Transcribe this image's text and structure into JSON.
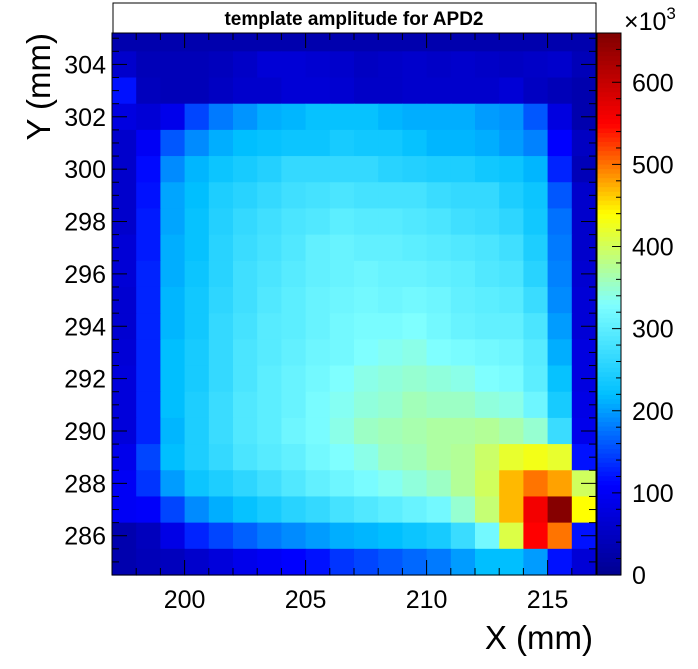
{
  "chart_data": {
    "type": "heatmap",
    "title": "template amplitude for APD2",
    "xlabel": "X (mm)",
    "ylabel": "Y (mm)",
    "xlim": [
      197.0,
      217.0
    ],
    "ylim": [
      284.5,
      305.2
    ],
    "x_ticks": [
      200,
      205,
      210,
      215
    ],
    "y_ticks": [
      286,
      288,
      290,
      292,
      294,
      296,
      298,
      300,
      302,
      304
    ],
    "x_centers": [
      197.5,
      198.5,
      199.5,
      200.5,
      201.5,
      202.5,
      203.5,
      204.5,
      205.5,
      206.5,
      207.5,
      208.5,
      209.5,
      210.5,
      211.5,
      212.5,
      213.5,
      214.5,
      215.5,
      216.5
    ],
    "y_centers": [
      305.0,
      304.0,
      303.0,
      302.0,
      301.0,
      300.0,
      299.0,
      298.0,
      297.0,
      296.0,
      295.0,
      294.0,
      293.0,
      292.0,
      291.0,
      290.0,
      289.0,
      288.0,
      287.0,
      286.0,
      285.0
    ],
    "z_rows_top_to_bottom": [
      [
        30,
        30,
        30,
        30,
        30,
        30,
        30,
        30,
        30,
        30,
        30,
        30,
        30,
        30,
        30,
        30,
        30,
        30,
        30,
        30
      ],
      [
        60,
        40,
        40,
        40,
        45,
        55,
        70,
        70,
        65,
        60,
        50,
        55,
        60,
        55,
        60,
        55,
        50,
        55,
        60,
        40
      ],
      [
        120,
        45,
        40,
        40,
        50,
        60,
        60,
        70,
        70,
        65,
        55,
        55,
        60,
        60,
        60,
        60,
        70,
        50,
        40,
        30
      ],
      [
        80,
        70,
        90,
        150,
        180,
        195,
        210,
        215,
        225,
        225,
        225,
        215,
        210,
        210,
        210,
        200,
        195,
        160,
        80,
        30
      ],
      [
        60,
        100,
        160,
        190,
        210,
        220,
        225,
        230,
        230,
        240,
        235,
        235,
        225,
        215,
        215,
        210,
        200,
        185,
        110,
        50
      ],
      [
        60,
        115,
        190,
        215,
        230,
        240,
        250,
        265,
        265,
        265,
        265,
        255,
        250,
        245,
        245,
        235,
        230,
        215,
        130,
        40
      ],
      [
        60,
        120,
        205,
        220,
        245,
        255,
        265,
        275,
        280,
        285,
        280,
        280,
        280,
        270,
        265,
        265,
        245,
        230,
        160,
        60
      ],
      [
        60,
        125,
        205,
        225,
        250,
        265,
        275,
        285,
        290,
        300,
        295,
        295,
        290,
        285,
        275,
        270,
        260,
        235,
        175,
        60
      ],
      [
        70,
        125,
        210,
        225,
        255,
        270,
        280,
        290,
        305,
        310,
        305,
        305,
        300,
        295,
        290,
        285,
        275,
        245,
        180,
        60
      ],
      [
        70,
        130,
        210,
        230,
        255,
        275,
        285,
        295,
        305,
        310,
        315,
        310,
        310,
        305,
        300,
        290,
        285,
        255,
        185,
        65
      ],
      [
        65,
        130,
        215,
        235,
        260,
        275,
        290,
        300,
        310,
        315,
        320,
        315,
        320,
        315,
        305,
        300,
        295,
        270,
        190,
        70
      ],
      [
        65,
        130,
        215,
        235,
        265,
        280,
        295,
        300,
        310,
        320,
        325,
        325,
        330,
        320,
        310,
        305,
        305,
        285,
        200,
        70
      ],
      [
        70,
        130,
        220,
        240,
        265,
        285,
        295,
        305,
        315,
        320,
        330,
        335,
        340,
        330,
        325,
        320,
        315,
        295,
        210,
        80
      ],
      [
        75,
        130,
        220,
        240,
        265,
        285,
        300,
        310,
        320,
        330,
        340,
        345,
        350,
        345,
        340,
        330,
        325,
        300,
        225,
        80
      ],
      [
        75,
        130,
        220,
        245,
        270,
        290,
        300,
        310,
        325,
        335,
        345,
        350,
        360,
        355,
        355,
        345,
        340,
        315,
        240,
        85
      ],
      [
        75,
        130,
        215,
        245,
        270,
        290,
        300,
        315,
        325,
        340,
        355,
        360,
        365,
        370,
        370,
        375,
        365,
        350,
        270,
        90
      ],
      [
        90,
        150,
        220,
        245,
        265,
        285,
        295,
        305,
        320,
        330,
        340,
        355,
        360,
        370,
        375,
        395,
        420,
        430,
        420,
        120
      ],
      [
        100,
        140,
        200,
        230,
        245,
        260,
        275,
        290,
        305,
        315,
        325,
        335,
        345,
        355,
        375,
        400,
        470,
        500,
        480,
        400
      ],
      [
        100,
        105,
        150,
        190,
        210,
        225,
        240,
        255,
        265,
        280,
        290,
        300,
        310,
        320,
        350,
        390,
        470,
        560,
        655,
        440
      ],
      [
        30,
        45,
        85,
        130,
        150,
        165,
        180,
        190,
        200,
        210,
        215,
        220,
        230,
        240,
        270,
        320,
        410,
        550,
        500,
        120
      ],
      [
        30,
        40,
        45,
        60,
        75,
        90,
        100,
        110,
        120,
        140,
        150,
        160,
        170,
        180,
        200,
        220,
        220,
        200,
        120,
        70
      ]
    ],
    "z_range": [
      0,
      660
    ],
    "colorbar_ticks": [
      0,
      100,
      200,
      300,
      400,
      500,
      600
    ],
    "colorbar_exponent": "10",
    "colorbar_exponent_power": "3",
    "colorbar_multiplier": "×",
    "colormap": [
      "#00008f",
      "#0000ff",
      "#00bfff",
      "#7fffff",
      "#ffff00",
      "#ff0000",
      "#800000"
    ],
    "grid": false,
    "legend": "none"
  }
}
